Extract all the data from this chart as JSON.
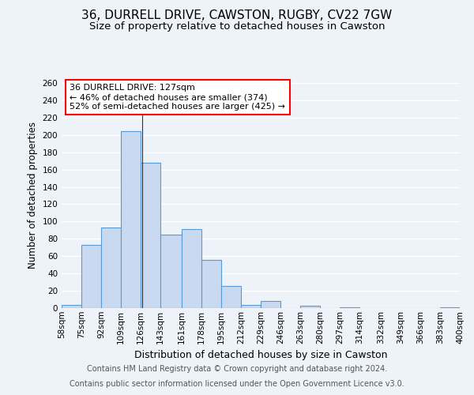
{
  "title": "36, DURRELL DRIVE, CAWSTON, RUGBY, CV22 7GW",
  "subtitle": "Size of property relative to detached houses in Cawston",
  "xlabel": "Distribution of detached houses by size in Cawston",
  "ylabel": "Number of detached properties",
  "bar_left_edges": [
    58,
    75,
    92,
    109,
    126,
    143,
    161,
    178,
    195,
    212,
    229,
    246,
    263,
    280,
    297,
    314,
    332,
    349,
    366,
    383
  ],
  "bar_widths": [
    17,
    17,
    17,
    17,
    17,
    18,
    17,
    17,
    17,
    17,
    17,
    17,
    17,
    17,
    17,
    18,
    17,
    17,
    17,
    17
  ],
  "bar_heights": [
    4,
    73,
    93,
    204,
    168,
    85,
    91,
    56,
    26,
    4,
    8,
    0,
    3,
    0,
    1,
    0,
    0,
    0,
    0,
    1
  ],
  "bar_color": "#c9d9f0",
  "bar_edgecolor": "#5b9bd5",
  "tick_labels": [
    "58sqm",
    "75sqm",
    "92sqm",
    "109sqm",
    "126sqm",
    "143sqm",
    "161sqm",
    "178sqm",
    "195sqm",
    "212sqm",
    "229sqm",
    "246sqm",
    "263sqm",
    "280sqm",
    "297sqm",
    "314sqm",
    "332sqm",
    "349sqm",
    "366sqm",
    "383sqm",
    "400sqm"
  ],
  "ylim": [
    0,
    260
  ],
  "yticks": [
    0,
    20,
    40,
    60,
    80,
    100,
    120,
    140,
    160,
    180,
    200,
    220,
    240,
    260
  ],
  "property_line_x": 127,
  "annotation_line1": "36 DURRELL DRIVE: 127sqm",
  "annotation_line2": "← 46% of detached houses are smaller (374)",
  "annotation_line3": "52% of semi-detached houses are larger (425) →",
  "footer_line1": "Contains HM Land Registry data © Crown copyright and database right 2024.",
  "footer_line2": "Contains public sector information licensed under the Open Government Licence v3.0.",
  "background_color": "#eef2f9",
  "grid_color": "#ffffff",
  "title_fontsize": 11,
  "subtitle_fontsize": 9.5,
  "xlabel_fontsize": 9,
  "ylabel_fontsize": 8.5,
  "tick_fontsize": 7.5,
  "footer_fontsize": 7,
  "annotation_fontsize": 8
}
